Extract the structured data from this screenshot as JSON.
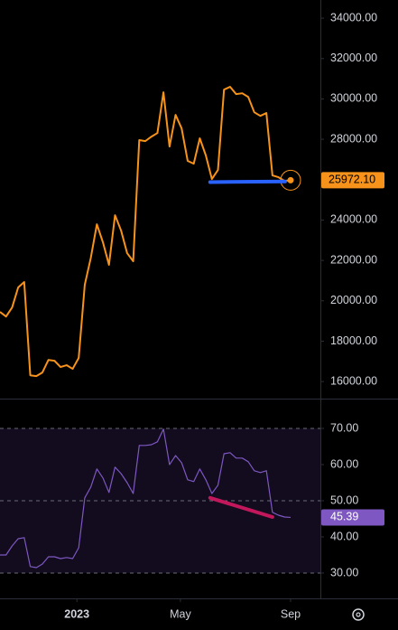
{
  "chart_data": [
    {
      "type": "line",
      "x": [
        0,
        1,
        2,
        3,
        4,
        5,
        6,
        7,
        8,
        9,
        10,
        11,
        12,
        13,
        14,
        15,
        16,
        17,
        18,
        19,
        20,
        21,
        22,
        23,
        24,
        25,
        26,
        27,
        28,
        29,
        30,
        31,
        32,
        33,
        34,
        35,
        36,
        37,
        38,
        39,
        40,
        41,
        42,
        43,
        44,
        45,
        46,
        47,
        48
      ],
      "xlim": [
        0,
        48
      ],
      "series": [
        {
          "color": "#f7931a",
          "values": [
            19450,
            19220,
            19670,
            20660,
            20930,
            16310,
            16270,
            16450,
            17070,
            17030,
            16720,
            16810,
            16630,
            17170,
            20790,
            22130,
            23790,
            22900,
            21780,
            24240,
            23480,
            22360,
            21960,
            27960,
            27910,
            28130,
            28310,
            30330,
            27640,
            29210,
            28540,
            26930,
            26790,
            28050,
            27200,
            26030,
            26480,
            30460,
            30600,
            30240,
            30280,
            30100,
            29340,
            29160,
            29300,
            26210,
            26120,
            25940,
            25972.1
          ]
        }
      ],
      "last_label": {
        "value": 25972.1,
        "label": "25972.10"
      },
      "drawings": [
        {
          "x": [
            34.7,
            47.1
          ],
          "values": [
            25880,
            25910
          ],
          "color": "#2962ff"
        }
      ],
      "ylim": [
        15200,
        34900
      ],
      "yticks": [
        {
          "value": 16000,
          "label": "16000.00"
        },
        {
          "value": 18000,
          "label": "18000.00"
        },
        {
          "value": 20000,
          "label": "20000.00"
        },
        {
          "value": 22000,
          "label": "22000.00"
        },
        {
          "value": 24000,
          "label": "24000.00"
        },
        {
          "value": 26000,
          "label": "26000.00"
        },
        {
          "value": 28000,
          "label": "28000.00"
        },
        {
          "value": 30000,
          "label": "30000.00"
        },
        {
          "value": 32000,
          "label": "32000.00"
        },
        {
          "value": 34000,
          "label": "34000.00"
        }
      ]
    },
    {
      "type": "line",
      "x": [
        0,
        1,
        2,
        3,
        4,
        5,
        6,
        7,
        8,
        9,
        10,
        11,
        12,
        13,
        14,
        15,
        16,
        17,
        18,
        19,
        20,
        21,
        22,
        23,
        24,
        25,
        26,
        27,
        28,
        29,
        30,
        31,
        32,
        33,
        34,
        35,
        36,
        37,
        38,
        39,
        40,
        41,
        42,
        43,
        44,
        45,
        46,
        47,
        48
      ],
      "xlim": [
        0,
        48
      ],
      "xticks": [
        {
          "value": 12.7,
          "label": "2023"
        },
        {
          "value": 29.8,
          "label": "May"
        },
        {
          "value": 48,
          "label": "Sep"
        }
      ],
      "series": [
        {
          "color": "#7e57c2",
          "values": [
            35,
            35,
            37.5,
            39.5,
            39.8,
            31.8,
            31.5,
            32.5,
            34.5,
            34.5,
            34,
            34.3,
            34,
            37,
            50.8,
            53.8,
            58.8,
            56.3,
            52.3,
            59.3,
            57.5,
            55,
            52,
            65.3,
            65.3,
            65.5,
            66.3,
            69.8,
            60,
            62.5,
            60.5,
            55.8,
            55.3,
            58.8,
            55.8,
            52,
            54.3,
            63,
            63.3,
            61.8,
            61.8,
            60.8,
            58.3,
            57.8,
            58.3,
            46.8,
            46,
            45.5,
            45.39
          ]
        }
      ],
      "last_label": {
        "value": 45.39,
        "label": "45.39"
      },
      "drawings": [
        {
          "x": [
            34.7,
            45
          ],
          "values": [
            50.8,
            45.5
          ],
          "color": "#c2185b"
        }
      ],
      "ylim": [
        23,
        78
      ],
      "yticks": [
        {
          "value": 30,
          "label": "30.00"
        },
        {
          "value": 40,
          "label": "40.00"
        },
        {
          "value": 50,
          "label": "50.00"
        },
        {
          "value": 60,
          "label": "60.00"
        },
        {
          "value": 70,
          "label": "70.00"
        }
      ],
      "dashed_levels": [
        30,
        50,
        70
      ]
    }
  ]
}
